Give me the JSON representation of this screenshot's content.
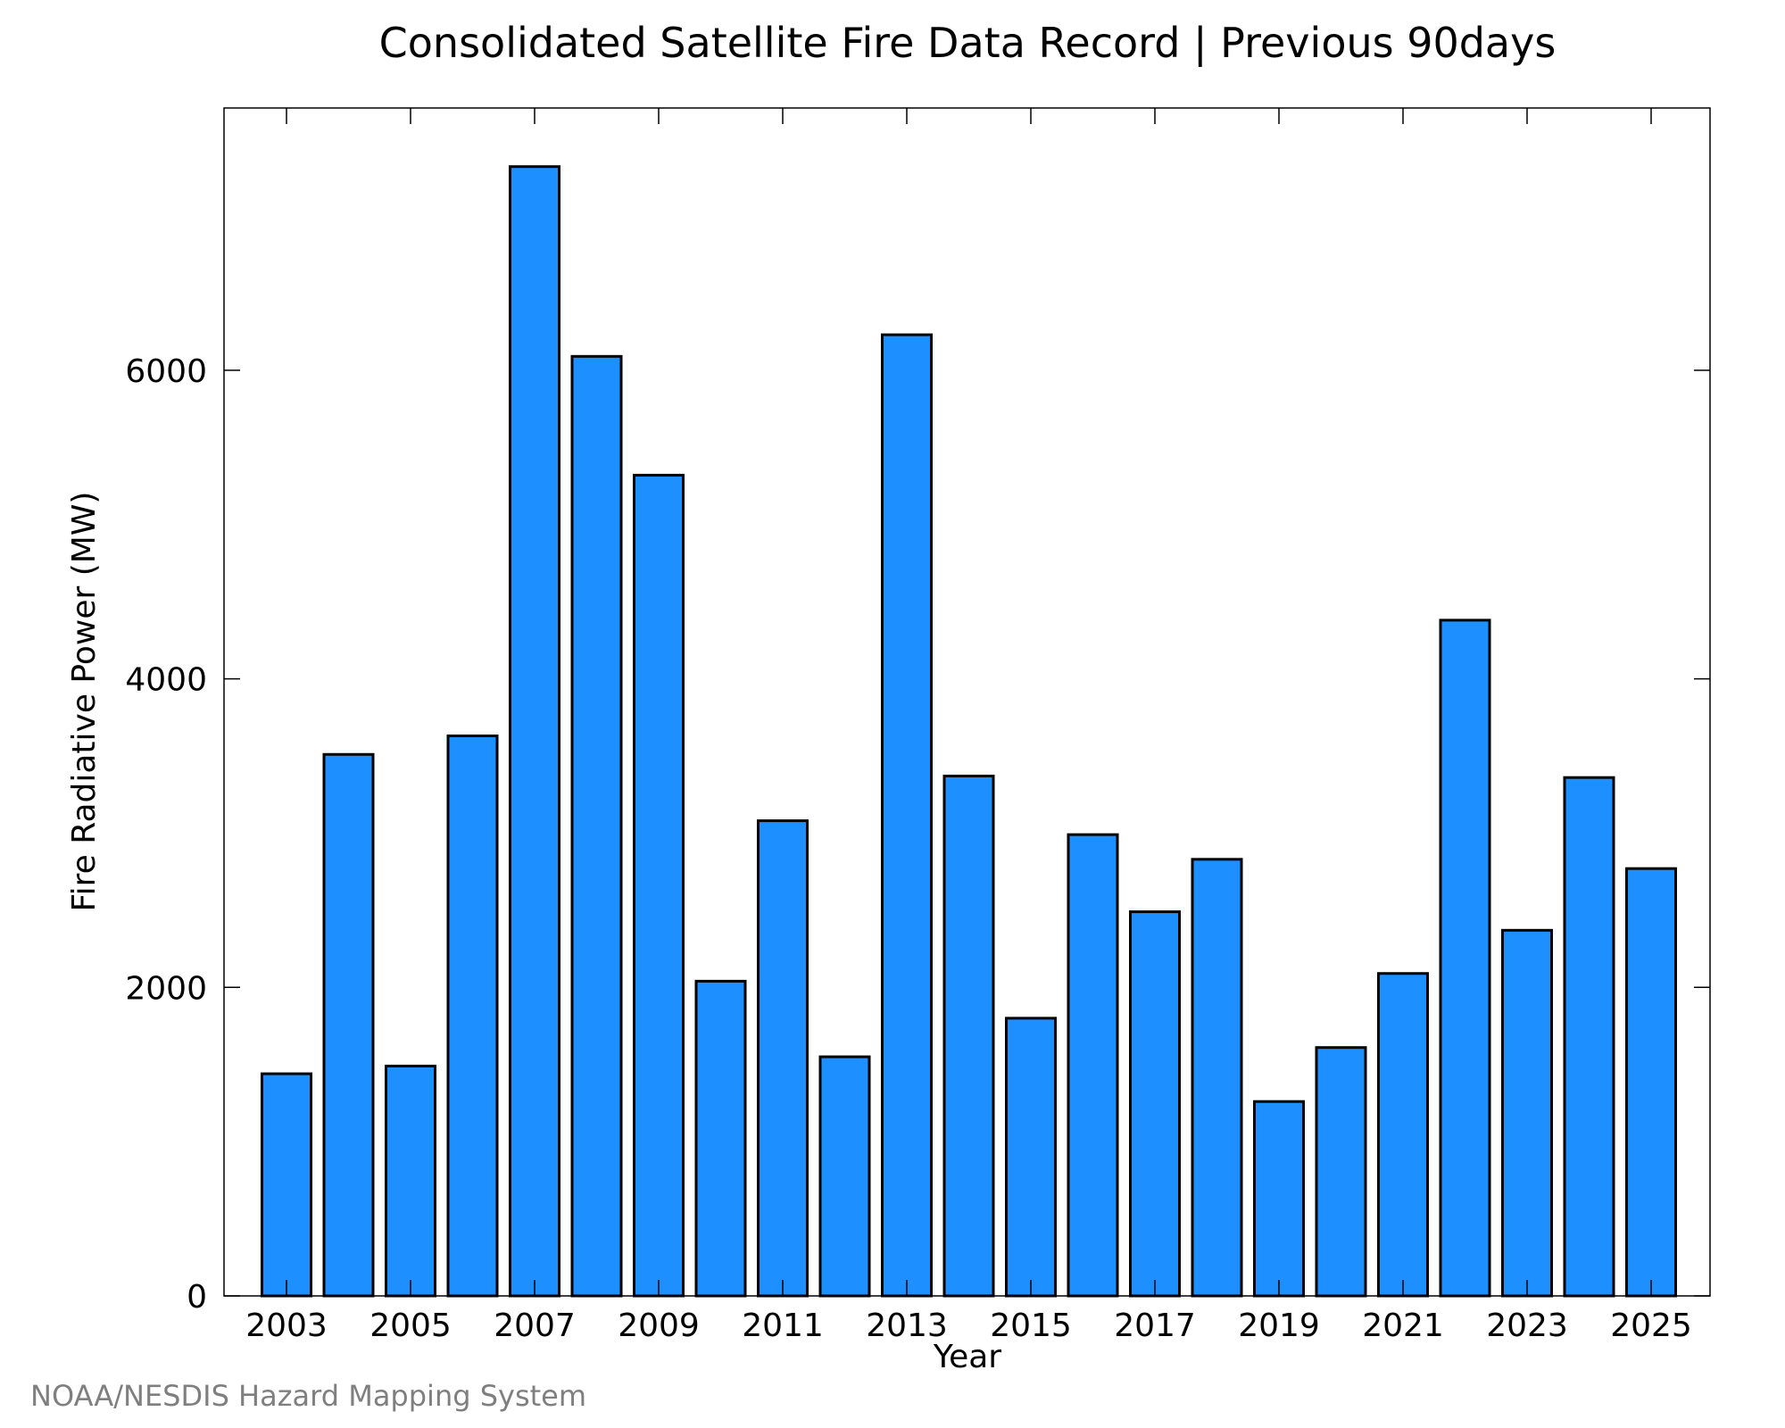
{
  "chart_data": {
    "type": "bar",
    "title": "Consolidated Satellite Fire Data Record | Previous 90days",
    "xlabel": "Year",
    "ylabel": "Fire Radiative Power (MW)",
    "categories": [
      "2003",
      "2004",
      "2005",
      "2006",
      "2007",
      "2008",
      "2009",
      "2010",
      "2011",
      "2012",
      "2013",
      "2014",
      "2015",
      "2016",
      "2017",
      "2018",
      "2019",
      "2020",
      "2021",
      "2022",
      "2023",
      "2024",
      "2025"
    ],
    "x_tick_labels": [
      "2003",
      "2005",
      "2007",
      "2009",
      "2011",
      "2013",
      "2015",
      "2017",
      "2019",
      "2021",
      "2023",
      "2025"
    ],
    "values": [
      1440,
      3510,
      1490,
      3630,
      7320,
      6090,
      5320,
      2040,
      3080,
      1550,
      6230,
      3370,
      1800,
      2990,
      2490,
      2830,
      1260,
      1610,
      2090,
      4380,
      2370,
      3360,
      2770
    ],
    "ylim": [
      0,
      7700
    ],
    "y_ticks": [
      0,
      2000,
      4000,
      6000
    ],
    "y_tick_labels": [
      "0",
      "2000",
      "4000",
      "6000"
    ],
    "bar_color": "#1e8fff",
    "bar_edge_color": "#000000",
    "grid": false,
    "legend": "none"
  },
  "credit": "NOAA/NESDIS Hazard Mapping System"
}
